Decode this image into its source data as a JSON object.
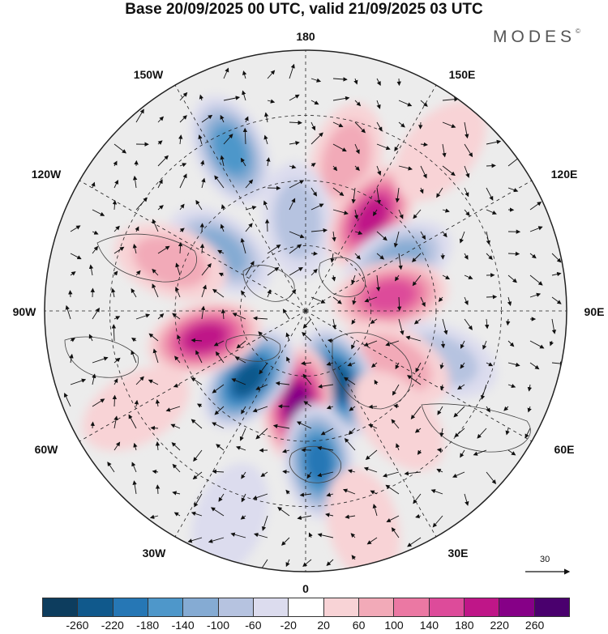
{
  "title": "Base 20/09/2025 00 UTC, valid 21/09/2025 03 UTC",
  "brand": "MODES",
  "brand_mark": "©",
  "longitude_labels": {
    "top": "180",
    "bottom": "0",
    "left": "90W",
    "right": "90E",
    "upper_left_1": "150W",
    "upper_left_2": "120W",
    "upper_right_1": "150E",
    "upper_right_2": "120E",
    "lower_left_1": "60W",
    "lower_left_2": "30W",
    "lower_right_1": "60E",
    "lower_right_2": "30E"
  },
  "reference_vector": {
    "label": "30",
    "length_units": 30
  },
  "legend": {
    "ticks": [
      "-260",
      "-220",
      "-180",
      "-140",
      "-100",
      "-60",
      "-20",
      "20",
      "60",
      "100",
      "140",
      "180",
      "220",
      "260"
    ],
    "colors": [
      "#0d3d5e",
      "#10598c",
      "#2677b5",
      "#4e97ca",
      "#85abd3",
      "#b6c3e0",
      "#dcdcee",
      "#ffffff",
      "#f8d3d6",
      "#f2aab8",
      "#eb78a3",
      "#dd4b9a",
      "#bf1688",
      "#860087",
      "#4a006e"
    ]
  },
  "anomalies": [
    {
      "lon": -155,
      "r": 0.68,
      "v": -160
    },
    {
      "lon": 165,
      "r": 0.6,
      "v": 70
    },
    {
      "lon": -175,
      "r": 0.35,
      "v": -100
    },
    {
      "lon": 145,
      "r": 0.44,
      "v": 190
    },
    {
      "lon": 118,
      "r": 0.4,
      "v": -140
    },
    {
      "lon": 100,
      "r": 0.33,
      "v": 180
    },
    {
      "lon": 70,
      "r": 0.55,
      "v": -100
    },
    {
      "lon": 60,
      "r": 0.4,
      "v": 100
    },
    {
      "lon": 25,
      "r": 0.3,
      "v": -260
    },
    {
      "lon": -5,
      "r": 0.36,
      "v": 230
    },
    {
      "lon": -40,
      "r": 0.34,
      "v": -250
    },
    {
      "lon": 5,
      "r": 0.58,
      "v": -200
    },
    {
      "lon": -75,
      "r": 0.4,
      "v": 210
    },
    {
      "lon": -125,
      "r": 0.4,
      "v": -130
    },
    {
      "lon": -110,
      "r": 0.55,
      "v": 70
    },
    {
      "lon": 40,
      "r": 0.55,
      "v": 60
    },
    {
      "lon": -60,
      "r": 0.75,
      "v": 50
    },
    {
      "lon": -20,
      "r": 0.85,
      "v": -40
    },
    {
      "lon": 15,
      "r": 0.85,
      "v": 60
    },
    {
      "lon": 140,
      "r": 0.8,
      "v": 40
    }
  ]
}
